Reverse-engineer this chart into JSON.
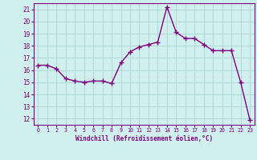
{
  "x": [
    0,
    1,
    2,
    3,
    4,
    5,
    6,
    7,
    8,
    9,
    10,
    11,
    12,
    13,
    14,
    15,
    16,
    17,
    18,
    19,
    20,
    21,
    22,
    23
  ],
  "y": [
    16.4,
    16.4,
    16.1,
    15.3,
    15.1,
    15.0,
    15.1,
    15.1,
    14.9,
    16.6,
    17.5,
    17.9,
    18.1,
    18.3,
    21.2,
    19.1,
    18.6,
    18.6,
    18.1,
    17.6,
    17.6,
    17.6,
    15.0,
    11.9
  ],
  "line_color": "#800080",
  "marker": "+",
  "marker_size": 4,
  "marker_linewidth": 1.0,
  "line_width": 1.0,
  "xlabel": "Windchill (Refroidissement éolien,°C)",
  "ylabel": "",
  "xlim": [
    -0.5,
    23.5
  ],
  "ylim": [
    11.5,
    21.5
  ],
  "yticks": [
    12,
    13,
    14,
    15,
    16,
    17,
    18,
    19,
    20,
    21
  ],
  "xticks": [
    0,
    1,
    2,
    3,
    4,
    5,
    6,
    7,
    8,
    9,
    10,
    11,
    12,
    13,
    14,
    15,
    16,
    17,
    18,
    19,
    20,
    21,
    22,
    23
  ],
  "background_color": "#cff0ee",
  "grid_color": "#b0d8d8",
  "tick_color": "#800080",
  "label_color": "#800080",
  "font_family": "monospace",
  "xlabel_fontsize": 5.5,
  "ytick_fontsize": 5.5,
  "xtick_fontsize": 4.8
}
